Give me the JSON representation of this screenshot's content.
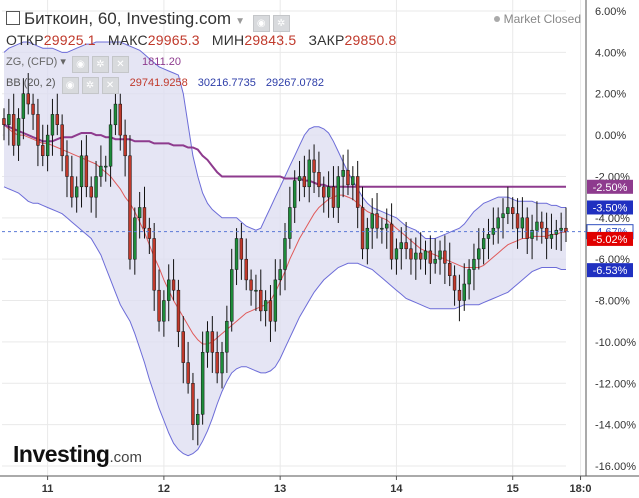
{
  "header": {
    "title": "Биткоин, 60, Investing.com",
    "market_status": "Market Closed",
    "ohlc": [
      {
        "label": "ОТКР",
        "value": "29925.1"
      },
      {
        "label": "МАКС",
        "value": "29965.3"
      },
      {
        "label": "МИН",
        "value": "29843.5"
      },
      {
        "label": "ЗАКР",
        "value": "29850.8"
      }
    ],
    "indicator1": {
      "label": "ZG, (CFD)",
      "value": "1811.20"
    },
    "indicator2": {
      "label": "BB (20, 2)",
      "mid": "29741.9258",
      "upper": "30216.7735",
      "lower": "29267.0782"
    }
  },
  "logo": {
    "main": "Investing",
    "suffix": ".com"
  },
  "colors": {
    "up": "#1e8c3a",
    "down": "#c0392b",
    "band_fill": "#dcdcf0",
    "band_line": "#6c6cd8",
    "mid_line": "#e05a5a",
    "overlay": "#8e3b8e",
    "grid": "#e9e9e9",
    "dashed": "#5b79d6"
  },
  "chart_data": {
    "type": "candlestick",
    "ylim": [
      -16.5,
      6.5
    ],
    "y_ticks": [
      "6.00%",
      "4.00%",
      "2.00%",
      "0.00%",
      "-2.00%",
      "-4.00%",
      "-6.00%",
      "-8.00%",
      "-10.00%",
      "-12.00%",
      "-14.00%",
      "-16.00%"
    ],
    "y_tick_values": [
      6,
      4,
      2,
      0,
      -2,
      -4,
      -6,
      -8,
      -10,
      -12,
      -14,
      -16
    ],
    "x_ticks": [
      {
        "label": "11",
        "x": 9
      },
      {
        "label": "12",
        "x": 33
      },
      {
        "label": "13",
        "x": 57
      },
      {
        "label": "14",
        "x": 81
      },
      {
        "label": "15",
        "x": 105
      },
      {
        "label": "18:0",
        "x": 119
      }
    ],
    "x_range": [
      0,
      122
    ],
    "price_badges": [
      {
        "label": "-2.50%",
        "value": -2.5,
        "color": "#8e3b8e"
      },
      {
        "label": "-3.50%",
        "value": -3.5,
        "color": "#2030c0"
      },
      {
        "label": "-4.67%",
        "value": -4.67,
        "color": "#ffffff",
        "text_color": "#3050c0",
        "bordered": true
      },
      {
        "label": "-5.02%",
        "value": -5.02,
        "color": "#e00000"
      },
      {
        "label": "-6.53%",
        "value": -6.53,
        "color": "#2030c0"
      }
    ],
    "current_value": -4.67,
    "series": [
      {
        "name": "Биткоин",
        "kind": "close",
        "values": [
          0.5,
          1.0,
          -0.5,
          0.8,
          2.0,
          1.5,
          1.0,
          -0.5,
          -1.0,
          0.0,
          1.0,
          0.5,
          -1.0,
          -2.0,
          -3.0,
          -2.5,
          -1.0,
          -2.5,
          -3.0,
          -2.0,
          -1.5,
          -1.5,
          0.5,
          1.5,
          0.0,
          -1.0,
          -6.0,
          -4.0,
          -3.5,
          -4.5,
          -5.0,
          -7.5,
          -9.0,
          -8.0,
          -7.0,
          -7.5,
          -9.5,
          -11.0,
          -12.0,
          -14.0,
          -13.5,
          -10.5,
          -9.5,
          -10.5,
          -11.5,
          -10.5,
          -9.0,
          -6.5,
          -5.0,
          -6.0,
          -7.0,
          -7.5,
          -7.5,
          -8.5,
          -8.0,
          -9.0,
          -7.0,
          -6.5,
          -5.0,
          -3.5,
          -2.2,
          -2.0,
          -2.5,
          -1.2,
          -1.8,
          -2.5,
          -3.0,
          -2.5,
          -3.5,
          -2.0,
          -1.7,
          -2.4,
          -2.0,
          -3.5,
          -5.5,
          -4.5,
          -3.8,
          -4.5,
          -4.5,
          -4.3,
          -6.0,
          -5.5,
          -5.2,
          -5.5,
          -6.0,
          -5.7,
          -6.0,
          -5.6,
          -6.2,
          -6.0,
          -5.6,
          -6.2,
          -6.8,
          -7.5,
          -8.0,
          -7.2,
          -6.5,
          -6.0,
          -5.5,
          -5.0,
          -4.8,
          -4.5,
          -4.0,
          -3.8,
          -3.5,
          -3.8,
          -4.5,
          -4.0,
          -5.0,
          -4.6,
          -4.2,
          -4.5,
          -5.0,
          -4.8,
          -4.6,
          -4.5,
          -4.67
        ]
      },
      {
        "name": "BB (20, 2)",
        "kind": "mid",
        "values": [
          0.5,
          0.3,
          0.1,
          0.0,
          0.0,
          -0.1,
          -0.2,
          -0.3,
          -0.4,
          -0.4,
          -0.5,
          -0.6,
          -0.7,
          -0.8,
          -0.9,
          -1.0,
          -1.1,
          -1.2,
          -1.3,
          -1.4,
          -1.6,
          -1.8,
          -2.0,
          -2.3,
          -2.6,
          -3.0,
          -3.3,
          -3.7,
          -4.2,
          -4.7,
          -5.3,
          -5.9,
          -6.4,
          -7.0,
          -7.5,
          -8.0,
          -8.4,
          -8.8,
          -9.2,
          -9.6,
          -9.9,
          -10.1,
          -10.1,
          -10.0,
          -9.8,
          -9.6,
          -9.4,
          -9.2,
          -9.0,
          -8.8,
          -8.6,
          -8.5,
          -8.4,
          -8.3,
          -8.2,
          -8.0,
          -7.6,
          -7.1,
          -6.6,
          -6.0,
          -5.5,
          -5.0,
          -4.6,
          -4.2,
          -3.8,
          -3.5,
          -3.3,
          -3.1,
          -3.0,
          -2.9,
          -2.9,
          -3.0,
          -3.1,
          -3.3,
          -3.5,
          -3.7,
          -3.8,
          -3.9,
          -4.0,
          -4.1,
          -4.3,
          -4.5,
          -4.7,
          -4.9,
          -5.1,
          -5.3,
          -5.5,
          -5.6,
          -5.7,
          -5.8,
          -5.9,
          -6.0,
          -6.1,
          -6.2,
          -6.3,
          -6.4,
          -6.4,
          -6.4,
          -6.4,
          -6.3,
          -6.1,
          -5.9,
          -5.7,
          -5.5,
          -5.3,
          -5.2,
          -5.1,
          -5.0,
          -5.0,
          -4.9,
          -4.9,
          -4.9,
          -4.9,
          -4.8,
          -4.8,
          -4.7,
          -4.7
        ]
      },
      {
        "name": "upper",
        "kind": "band",
        "values": [
          4.0,
          4.2,
          4.3,
          4.4,
          4.5,
          4.5,
          4.4,
          4.3,
          4.2,
          4.2,
          4.2,
          4.1,
          4.0,
          4.0,
          4.1,
          4.2,
          4.3,
          4.4,
          4.4,
          4.5,
          4.5,
          4.5,
          4.5,
          4.5,
          4.5,
          4.4,
          4.3,
          4.2,
          4.1,
          3.9,
          3.7,
          3.5,
          3.3,
          3.2,
          3.1,
          3.0,
          2.9,
          2.0,
          0.5,
          -1.0,
          -2.0,
          -2.8,
          -3.3,
          -3.6,
          -3.8,
          -4.0,
          -4.0,
          -4.0,
          -4.0,
          -4.2,
          -4.4,
          -4.5,
          -4.6,
          -4.5,
          -4.0,
          -3.5,
          -3.0,
          -2.5,
          -2.0,
          -1.5,
          -1.0,
          -0.5,
          0.0,
          0.3,
          0.4,
          0.4,
          0.3,
          0.1,
          -0.3,
          -0.8,
          -1.3,
          -1.8,
          -2.2,
          -2.6,
          -3.0,
          -3.3,
          -3.5,
          -3.6,
          -3.7,
          -3.8,
          -3.9,
          -4.0,
          -4.2,
          -4.4,
          -4.5,
          -4.6,
          -4.8,
          -5.0,
          -5.0,
          -5.0,
          -4.9,
          -4.8,
          -4.7,
          -4.6,
          -4.5,
          -4.3,
          -4.0,
          -3.7,
          -3.5,
          -3.3,
          -3.2,
          -3.1,
          -3.0,
          -3.0,
          -3.0,
          -3.1,
          -3.2,
          -3.2,
          -3.2,
          -3.2,
          -3.3,
          -3.3,
          -3.3,
          -3.4,
          -3.4,
          -3.5,
          -3.5
        ]
      },
      {
        "name": "lower",
        "kind": "band",
        "values": [
          -2.5,
          -2.6,
          -2.7,
          -2.8,
          -3.0,
          -3.2,
          -3.3,
          -3.3,
          -3.4,
          -3.5,
          -3.6,
          -3.7,
          -3.8,
          -4.0,
          -4.2,
          -4.4,
          -4.6,
          -4.8,
          -5.0,
          -5.4,
          -5.8,
          -6.4,
          -7.0,
          -7.6,
          -8.2,
          -8.6,
          -9.0,
          -9.6,
          -10.3,
          -11.0,
          -11.8,
          -12.5,
          -13.2,
          -13.8,
          -14.4,
          -14.9,
          -15.2,
          -15.4,
          -15.5,
          -15.4,
          -15.2,
          -14.8,
          -14.3,
          -13.7,
          -13.0,
          -12.4,
          -11.9,
          -11.5,
          -11.3,
          -11.2,
          -11.2,
          -11.3,
          -11.4,
          -11.5,
          -11.5,
          -11.4,
          -11.2,
          -10.8,
          -10.3,
          -9.8,
          -9.3,
          -8.8,
          -8.4,
          -8.0,
          -7.6,
          -7.3,
          -7.0,
          -6.8,
          -6.6,
          -6.4,
          -6.3,
          -6.2,
          -6.2,
          -6.2,
          -6.3,
          -6.4,
          -6.5,
          -6.7,
          -6.9,
          -7.1,
          -7.3,
          -7.5,
          -7.7,
          -7.9,
          -8.0,
          -8.1,
          -8.2,
          -8.3,
          -8.4,
          -8.4,
          -8.4,
          -8.4,
          -8.4,
          -8.4,
          -8.3,
          -8.2,
          -8.2,
          -8.2,
          -8.2,
          -8.1,
          -8.0,
          -7.9,
          -7.8,
          -7.7,
          -7.6,
          -7.4,
          -7.2,
          -7.0,
          -6.8,
          -6.6,
          -6.5,
          -6.4,
          -6.4,
          -6.4,
          -6.4,
          -6.5,
          -6.5
        ]
      },
      {
        "name": "ZG, (CFD)",
        "kind": "overlay",
        "values": [
          0.5,
          0.4,
          0.3,
          0.2,
          0.1,
          0.0,
          -0.1,
          -0.2,
          -0.3,
          -0.3,
          -0.3,
          -0.2,
          -0.1,
          -0.1,
          -0.1,
          0.0,
          0.1,
          0.1,
          0.1,
          0.0,
          0.0,
          -0.1,
          -0.1,
          -0.2,
          -0.2,
          -0.2,
          -0.2,
          -0.3,
          -0.3,
          -0.3,
          -0.3,
          -0.4,
          -0.4,
          -0.4,
          -0.4,
          -0.5,
          -0.5,
          -0.5,
          -0.6,
          -0.6,
          -0.7,
          -1.0,
          -1.2,
          -1.5,
          -1.8,
          -2.0,
          -2.0,
          -2.0,
          -2.0,
          -2.0,
          -2.0,
          -2.0,
          -2.0,
          -2.0,
          -2.0,
          -2.0,
          -2.0,
          -2.0,
          -2.1,
          -2.1,
          -2.1,
          -2.1,
          -2.2,
          -2.2,
          -2.3,
          -2.4,
          -2.4,
          -2.5,
          -2.5,
          -2.5,
          -2.5,
          -2.5,
          -2.5,
          -2.5,
          -2.5,
          -2.5,
          -2.5,
          -2.5,
          -2.5,
          -2.5,
          -2.5,
          -2.5,
          -2.5,
          -2.5,
          -2.5,
          -2.5,
          -2.5,
          -2.5,
          -2.5,
          -2.5,
          -2.5,
          -2.5,
          -2.5,
          -2.5,
          -2.5,
          -2.5,
          -2.5,
          -2.5,
          -2.5,
          -2.5,
          -2.5,
          -2.5,
          -2.5,
          -2.5,
          -2.5,
          -2.5,
          -2.5,
          -2.5,
          -2.5,
          -2.5,
          -2.5,
          -2.5,
          -2.5,
          -2.5,
          -2.5,
          -2.5,
          -2.5
        ]
      }
    ]
  }
}
